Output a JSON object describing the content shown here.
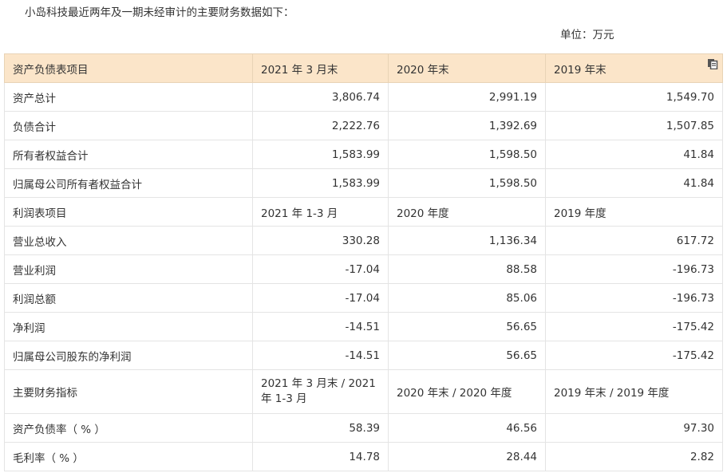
{
  "intro_text": "小岛科技最近两年及一期未经审计的主要财务数据如下：",
  "unit_text": "单位：万元",
  "table": {
    "header": [
      "资产负债表项目",
      "2021 年 3 月末",
      "2020 年末",
      "2019 年末"
    ],
    "rows": [
      [
        "资产总计",
        "3,806.74",
        "2,991.19",
        "1,549.70"
      ],
      [
        "负债合计",
        "2,222.76",
        "1,392.69",
        "1,507.85"
      ],
      [
        "所有者权益合计",
        "1,583.99",
        "1,598.50",
        "41.84"
      ],
      [
        "归属母公司所有者权益合计",
        "1,583.99",
        "1,598.50",
        "41.84"
      ],
      [
        "利润表项目",
        "2021 年 1-3 月",
        "2020 年度",
        "2019 年度"
      ],
      [
        "营业总收入",
        "330.28",
        "1,136.34",
        "617.72"
      ],
      [
        "营业利润",
        "-17.04",
        "88.58",
        "-196.73"
      ],
      [
        "利润总额",
        "-17.04",
        "85.06",
        "-196.73"
      ],
      [
        "净利润",
        "-14.51",
        "56.65",
        "-175.42"
      ],
      [
        "归属母公司股东的净利润",
        "-14.51",
        "56.65",
        "-175.42"
      ],
      [
        "主要财务指标",
        "2021 年 3 月末 / 2021 年 1-3 月",
        "2020 年末 / 2020 年度",
        "2019 年末 / 2019 年度"
      ],
      [
        "资产负债率（ % ）",
        "58.39",
        "46.56",
        "97.30"
      ],
      [
        "毛利率（ % ）",
        "14.78",
        "28.44",
        "2.82"
      ]
    ]
  },
  "icons": {
    "copy": "copy-icon"
  }
}
